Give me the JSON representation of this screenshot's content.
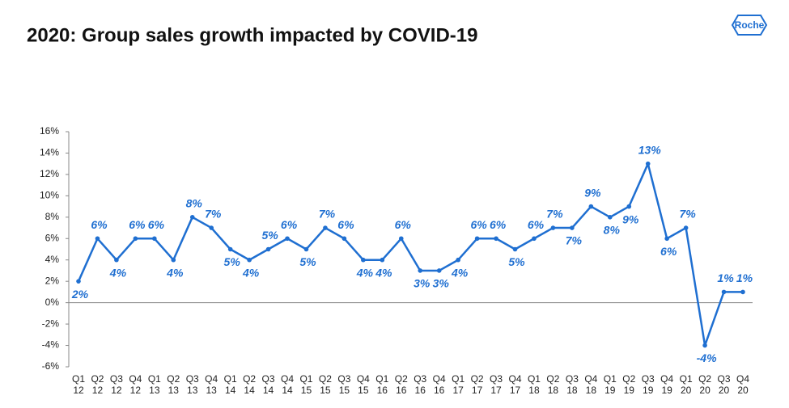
{
  "header": {
    "title": "2020: Group sales growth impacted by COVID-19",
    "logo": "Roche"
  },
  "chart_data": {
    "type": "line",
    "categories": [
      "Q1 12",
      "Q2 12",
      "Q3 12",
      "Q4 12",
      "Q1 13",
      "Q2 13",
      "Q3 13",
      "Q4 13",
      "Q1 14",
      "Q2 14",
      "Q3 14",
      "Q4 14",
      "Q1 15",
      "Q2 15",
      "Q3 15",
      "Q4 15",
      "Q1 16",
      "Q2 16",
      "Q3 16",
      "Q4 16",
      "Q1 17",
      "Q2 17",
      "Q3 17",
      "Q4 17",
      "Q1 18",
      "Q2 18",
      "Q3 18",
      "Q4 18",
      "Q1 19",
      "Q2 19",
      "Q3 19",
      "Q4 19",
      "Q1 20",
      "Q2 20",
      "Q3 20",
      "Q4 20"
    ],
    "values": [
      2,
      6,
      4,
      6,
      6,
      4,
      8,
      7,
      5,
      4,
      5,
      6,
      5,
      7,
      6,
      4,
      4,
      6,
      3,
      3,
      4,
      6,
      6,
      5,
      6,
      7,
      7,
      9,
      8,
      9,
      13,
      6,
      7,
      -4,
      1,
      1
    ],
    "value_labels": [
      "2%",
      "6%",
      "4%",
      "6%",
      "6%",
      "4%",
      "8%",
      "7%",
      "5%",
      "4%",
      "5%",
      "6%",
      "5%",
      "7%",
      "6%",
      "4%",
      "4%",
      "6%",
      "3%",
      "3%",
      "4%",
      "6%",
      "6%",
      "5%",
      "6%",
      "7%",
      "7%",
      "9%",
      "8%",
      "9%",
      "13%",
      "6%",
      "7%",
      "-4%",
      "1%",
      "1%"
    ],
    "color": "#1f6fd1",
    "ylim": [
      -6,
      16
    ],
    "yticks": [
      {
        "value": 16,
        "label": "16%"
      },
      {
        "value": 14,
        "label": "14%"
      },
      {
        "value": 12,
        "label": "12%"
      },
      {
        "value": 10,
        "label": "10%"
      },
      {
        "value": 8,
        "label": "8%"
      },
      {
        "value": 6,
        "label": "6%"
      },
      {
        "value": 4,
        "label": "4%"
      },
      {
        "value": 2,
        "label": "2%"
      },
      {
        "value": 0,
        "label": "0%"
      },
      {
        "value": -2,
        "label": "-2%"
      },
      {
        "value": -4,
        "label": "-4%"
      },
      {
        "value": -6,
        "label": "-6%"
      }
    ],
    "grid": false
  }
}
